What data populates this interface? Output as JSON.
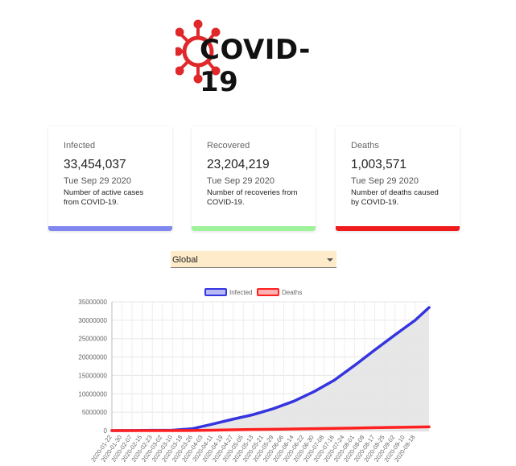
{
  "logo": {
    "text": "COVID-19"
  },
  "cards": [
    {
      "title": "Infected",
      "count": "33,454,037",
      "date": "Tue Sep 29 2020",
      "desc_line1": "Number of active cases",
      "desc_line2": "from COVID-19.",
      "color": "#8088f0"
    },
    {
      "title": "Recovered",
      "count": "23,204,219",
      "date": "Tue Sep 29 2020",
      "desc_line1": "Number of recoveries from",
      "desc_line2": "COVID-19.",
      "color": "#9ef29a"
    },
    {
      "title": "Deaths",
      "count": "1,003,571",
      "date": "Tue Sep 29 2020",
      "desc_line1": "Number of deaths caused",
      "desc_line2": "by COVID-19.",
      "color": "#ee1c1c"
    }
  ],
  "country_select": {
    "value": "Global"
  },
  "colors": {
    "infected": "#3535e0",
    "deaths": "#ff2020",
    "fill": "#e4e4e4"
  },
  "chart_data": {
    "type": "line",
    "series": [
      {
        "name": "Infected",
        "x": [
          "2020-01-22",
          "2020-02-07",
          "2020-02-23",
          "2020-03-10",
          "2020-03-26",
          "2020-04-11",
          "2020-04-27",
          "2020-05-13",
          "2020-05-29",
          "2020-06-14",
          "2020-06-30",
          "2020-07-16",
          "2020-08-01",
          "2020-08-17",
          "2020-09-02",
          "2020-09-18",
          "2020-09-29"
        ],
        "values": [
          557,
          31500,
          79000,
          120000,
          530000,
          1790000,
          3120000,
          4350000,
          5980000,
          8000000,
          10600000,
          13700000,
          17700000,
          21900000,
          26000000,
          30000000,
          33454037
        ]
      },
      {
        "name": "Deaths",
        "x": [
          "2020-01-22",
          "2020-02-07",
          "2020-02-23",
          "2020-03-10",
          "2020-03-26",
          "2020-04-11",
          "2020-04-27",
          "2020-05-13",
          "2020-05-29",
          "2020-06-14",
          "2020-06-30",
          "2020-07-16",
          "2020-08-01",
          "2020-08-17",
          "2020-09-02",
          "2020-09-18",
          "2020-09-29"
        ],
        "values": [
          17,
          720,
          2460,
          4260,
          24000,
          109000,
          211000,
          297000,
          368000,
          432000,
          513000,
          590000,
          690000,
          780000,
          865000,
          950000,
          1003571
        ]
      }
    ],
    "x_tick_labels": [
      "2020-01-22",
      "2020-01-30",
      "2020-02-07",
      "2020-02-15",
      "2020-02-23",
      "2020-03-02",
      "2020-03-10",
      "2020-03-18",
      "2020-03-26",
      "2020-04-03",
      "2020-04-11",
      "2020-04-19",
      "2020-04-27",
      "2020-05-05",
      "2020-05-13",
      "2020-05-21",
      "2020-05-29",
      "2020-06-06",
      "2020-06-14",
      "2020-06-22",
      "2020-06-30",
      "2020-07-08",
      "2020-07-16",
      "2020-07-24",
      "2020-08-01",
      "2020-08-09",
      "2020-08-17",
      "2020-08-25",
      "2020-09-02",
      "2020-09-10",
      "2020-09-18"
    ],
    "y_ticks": [
      "0",
      "5000000",
      "10000000",
      "15000000",
      "20000000",
      "25000000",
      "30000000",
      "35000000"
    ],
    "ylim": [
      0,
      35000000
    ],
    "legend": "top",
    "grid": true
  }
}
